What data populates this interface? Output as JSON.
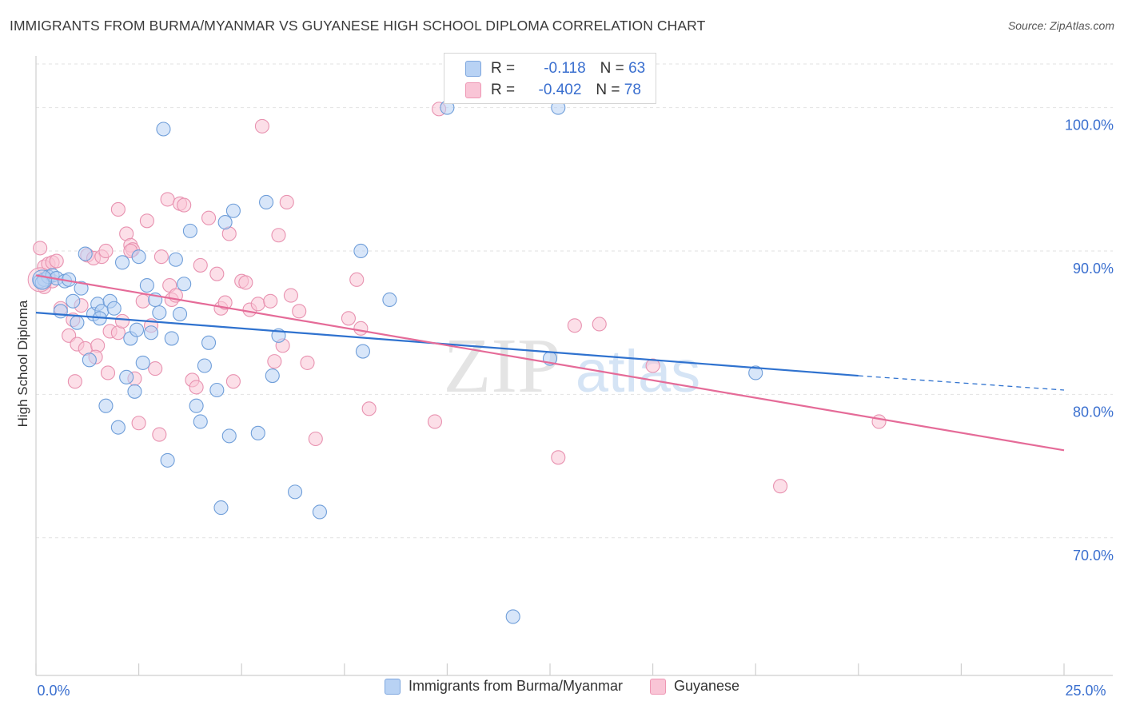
{
  "title": "IMMIGRANTS FROM BURMA/MYANMAR VS GUYANESE HIGH SCHOOL DIPLOMA CORRELATION CHART",
  "source": "Source: ZipAtlas.com",
  "watermark": {
    "zip": "ZIP",
    "atlas": "atlas"
  },
  "stats_legend": {
    "blue": {
      "r_label": "R =",
      "r_value": "-0.118",
      "n_label": "N =",
      "n_value": "63"
    },
    "pink": {
      "r_label": "R =",
      "r_value": "-0.402",
      "n_label": "N =",
      "n_value": "78"
    }
  },
  "chart_data": {
    "type": "scatter",
    "title": "IMMIGRANTS FROM BURMA/MYANMAR VS GUYANESE HIGH SCHOOL DIPLOMA CORRELATION CHART",
    "xlabel": "",
    "ylabel": "High School Diploma",
    "xlim": [
      0,
      25
    ],
    "ylim": [
      60.4,
      103.6
    ],
    "x_tick_labels": [
      {
        "value": 0,
        "label": "0.0%"
      },
      {
        "value": 25,
        "label": "25.0%"
      }
    ],
    "y_tick_labels": [
      {
        "value": 100,
        "label": "100.0%"
      },
      {
        "value": 90,
        "label": "90.0%"
      },
      {
        "value": 80,
        "label": "80.0%"
      },
      {
        "value": 70,
        "label": "70.0%"
      }
    ],
    "colors": {
      "blue_fill": "#b8d2f4",
      "blue_stroke": "#6f9ed9",
      "blue_line": "#2f72cf",
      "pink_fill": "#f9c5d6",
      "pink_stroke": "#e892b0",
      "pink_line": "#e56b98",
      "grid": "#e2e2e2",
      "tick_label": "#3a6fcf"
    },
    "series": [
      {
        "name": "Immigrants from Burma/Myanmar",
        "r": -0.118,
        "n": 63,
        "trend": {
          "x_start": 0,
          "y_start": 85.7,
          "x_solid_end": 20.0,
          "y_solid_end": 81.3,
          "x_end": 25,
          "y_end": 80.3
        },
        "points": [
          [
            0.1,
            87.9
          ],
          [
            0.2,
            88.0
          ],
          [
            0.3,
            88.2
          ],
          [
            0.4,
            88.3
          ],
          [
            0.5,
            88.1
          ],
          [
            0.7,
            87.9
          ],
          [
            0.8,
            88.0
          ],
          [
            0.6,
            85.8
          ],
          [
            0.9,
            86.5
          ],
          [
            1.0,
            85.0
          ],
          [
            1.1,
            87.4
          ],
          [
            1.2,
            89.8
          ],
          [
            1.3,
            82.4
          ],
          [
            1.4,
            85.6
          ],
          [
            1.5,
            86.3
          ],
          [
            1.6,
            85.8
          ],
          [
            1.7,
            79.2
          ],
          [
            1.8,
            86.5
          ],
          [
            1.9,
            86.0
          ],
          [
            2.0,
            77.7
          ],
          [
            2.1,
            89.2
          ],
          [
            2.2,
            81.2
          ],
          [
            2.3,
            83.9
          ],
          [
            2.4,
            80.2
          ],
          [
            2.5,
            89.6
          ],
          [
            2.6,
            82.2
          ],
          [
            2.7,
            87.6
          ],
          [
            2.8,
            84.3
          ],
          [
            2.9,
            86.6
          ],
          [
            3.0,
            85.7
          ],
          [
            3.1,
            98.5
          ],
          [
            3.2,
            75.4
          ],
          [
            3.3,
            83.9
          ],
          [
            3.4,
            89.4
          ],
          [
            3.5,
            85.6
          ],
          [
            3.6,
            87.7
          ],
          [
            3.75,
            91.4
          ],
          [
            3.9,
            79.2
          ],
          [
            4.0,
            78.1
          ],
          [
            4.1,
            82.0
          ],
          [
            4.2,
            83.6
          ],
          [
            4.4,
            80.3
          ],
          [
            4.6,
            92.0
          ],
          [
            4.7,
            77.1
          ],
          [
            4.8,
            92.8
          ],
          [
            4.5,
            72.1
          ],
          [
            5.6,
            93.4
          ],
          [
            5.4,
            77.3
          ],
          [
            5.9,
            84.1
          ],
          [
            5.75,
            81.3
          ],
          [
            6.3,
            73.2
          ],
          [
            6.9,
            71.8
          ],
          [
            7.9,
            90.0
          ],
          [
            7.95,
            83.0
          ],
          [
            8.6,
            86.6
          ],
          [
            10.0,
            100.0
          ],
          [
            11.6,
            64.5
          ],
          [
            12.7,
            100.0
          ],
          [
            12.5,
            82.5
          ],
          [
            17.5,
            81.5
          ],
          [
            0.15,
            87.8
          ],
          [
            1.55,
            85.3
          ],
          [
            2.45,
            84.5
          ]
        ]
      },
      {
        "name": "Guyanese",
        "r": -0.402,
        "n": 78,
        "trend": {
          "x_start": 0,
          "y_start": 88.3,
          "x_end": 25,
          "y_end": 76.1
        },
        "points": [
          [
            0.1,
            90.2
          ],
          [
            0.2,
            88.9
          ],
          [
            0.3,
            89.1
          ],
          [
            0.4,
            89.2
          ],
          [
            0.5,
            89.3
          ],
          [
            0.2,
            87.5
          ],
          [
            0.4,
            87.9
          ],
          [
            0.6,
            86.0
          ],
          [
            0.8,
            84.1
          ],
          [
            0.9,
            85.2
          ],
          [
            1.0,
            83.5
          ],
          [
            1.1,
            86.2
          ],
          [
            1.2,
            83.2
          ],
          [
            1.25,
            89.7
          ],
          [
            1.4,
            89.5
          ],
          [
            1.5,
            83.4
          ],
          [
            1.6,
            89.6
          ],
          [
            1.7,
            90.0
          ],
          [
            1.75,
            81.5
          ],
          [
            1.8,
            84.4
          ],
          [
            2.0,
            84.3
          ],
          [
            2.1,
            85.1
          ],
          [
            2.0,
            92.9
          ],
          [
            2.2,
            91.2
          ],
          [
            2.3,
            90.4
          ],
          [
            2.35,
            90.1
          ],
          [
            2.4,
            81.1
          ],
          [
            2.5,
            78.0
          ],
          [
            2.6,
            86.5
          ],
          [
            2.7,
            92.1
          ],
          [
            2.8,
            84.8
          ],
          [
            2.9,
            81.8
          ],
          [
            3.0,
            77.2
          ],
          [
            3.05,
            89.6
          ],
          [
            3.2,
            93.6
          ],
          [
            3.25,
            87.6
          ],
          [
            3.3,
            86.6
          ],
          [
            3.4,
            86.9
          ],
          [
            3.5,
            93.3
          ],
          [
            3.6,
            93.2
          ],
          [
            3.8,
            81.0
          ],
          [
            3.9,
            80.5
          ],
          [
            4.0,
            89.0
          ],
          [
            4.2,
            92.3
          ],
          [
            4.4,
            88.4
          ],
          [
            4.5,
            86.0
          ],
          [
            4.6,
            86.4
          ],
          [
            4.7,
            91.2
          ],
          [
            4.8,
            80.9
          ],
          [
            5.0,
            87.9
          ],
          [
            5.1,
            87.8
          ],
          [
            5.2,
            85.9
          ],
          [
            5.4,
            86.3
          ],
          [
            5.5,
            98.7
          ],
          [
            5.7,
            86.5
          ],
          [
            5.8,
            82.3
          ],
          [
            5.9,
            91.1
          ],
          [
            6.0,
            83.4
          ],
          [
            6.1,
            93.4
          ],
          [
            6.2,
            86.9
          ],
          [
            6.4,
            85.8
          ],
          [
            6.6,
            82.2
          ],
          [
            6.8,
            76.9
          ],
          [
            7.6,
            85.3
          ],
          [
            7.8,
            88.0
          ],
          [
            7.9,
            84.6
          ],
          [
            8.1,
            79.0
          ],
          [
            9.7,
            78.1
          ],
          [
            9.8,
            99.9
          ],
          [
            12.7,
            75.6
          ],
          [
            13.1,
            84.8
          ],
          [
            13.7,
            84.9
          ],
          [
            15.0,
            82.0
          ],
          [
            18.1,
            73.6
          ],
          [
            20.5,
            78.1
          ],
          [
            2.3,
            90.0
          ],
          [
            1.45,
            82.6
          ],
          [
            0.95,
            80.9
          ]
        ]
      }
    ],
    "legend": {
      "placement": "bottom-center",
      "entries": [
        "Immigrants from Burma/Myanmar",
        "Guyanese"
      ]
    }
  }
}
